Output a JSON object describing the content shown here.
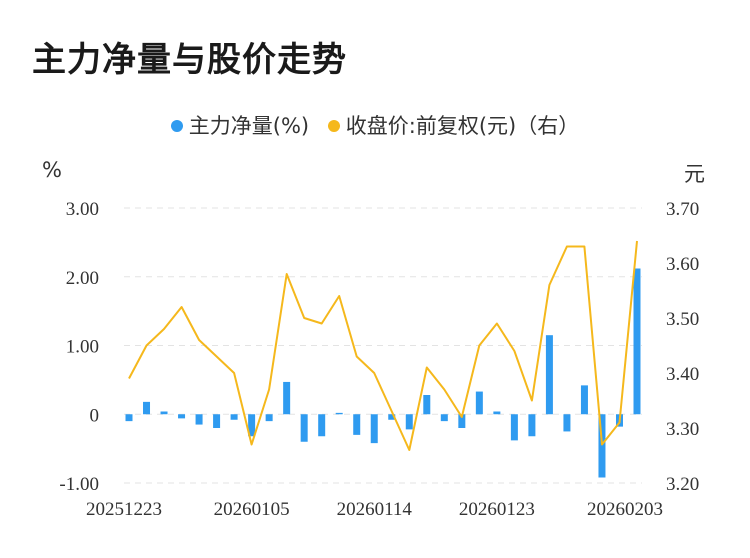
{
  "title": "主力净量与股价走势",
  "legend": [
    {
      "name": "主力净量(%)",
      "color": "#2f9bf0"
    },
    {
      "name": "收盘价:前复权(元)（右）",
      "color": "#f5b81c"
    }
  ],
  "units": {
    "left": "%",
    "right": "元"
  },
  "chart_data": {
    "type": "bar",
    "x_labels": [
      "20251223",
      "20260105",
      "20260114",
      "20260123",
      "20260203"
    ],
    "y_left": {
      "min": -1,
      "max": 3,
      "ticks": [
        -1,
        0,
        1,
        2,
        3
      ],
      "tick_labels": [
        "-1.00",
        "0",
        "1.00",
        "2.00",
        "3.00"
      ]
    },
    "y_right": {
      "min": 3.2,
      "max": 3.7,
      "ticks": [
        3.2,
        3.3,
        3.4,
        3.5,
        3.6,
        3.7
      ],
      "tick_labels": [
        "3.20",
        "3.30",
        "3.40",
        "3.50",
        "3.60",
        "3.70"
      ]
    },
    "series": [
      {
        "name": "主力净量(%)",
        "type": "bar",
        "axis": "left",
        "color": "#2f9bf0",
        "values": [
          -0.1,
          0.18,
          0.04,
          -0.06,
          -0.15,
          -0.2,
          -0.08,
          -0.32,
          -0.1,
          0.47,
          -0.4,
          -0.32,
          0.02,
          -0.3,
          -0.42,
          -0.08,
          -0.22,
          0.28,
          -0.1,
          -0.2,
          0.33,
          0.04,
          -0.38,
          -0.32,
          1.15,
          -0.25,
          0.42,
          -0.92,
          -0.18,
          2.12
        ]
      },
      {
        "name": "收盘价:前复权(元)（右）",
        "type": "line",
        "axis": "right",
        "color": "#f5b81c",
        "values": [
          3.39,
          3.45,
          3.48,
          3.52,
          3.46,
          3.43,
          3.4,
          3.27,
          3.37,
          3.58,
          3.5,
          3.49,
          3.54,
          3.43,
          3.4,
          3.33,
          3.26,
          3.41,
          3.37,
          3.32,
          3.45,
          3.49,
          3.44,
          3.35,
          3.56,
          3.63,
          3.63,
          3.27,
          3.31,
          3.64
        ]
      }
    ],
    "grid": true
  }
}
